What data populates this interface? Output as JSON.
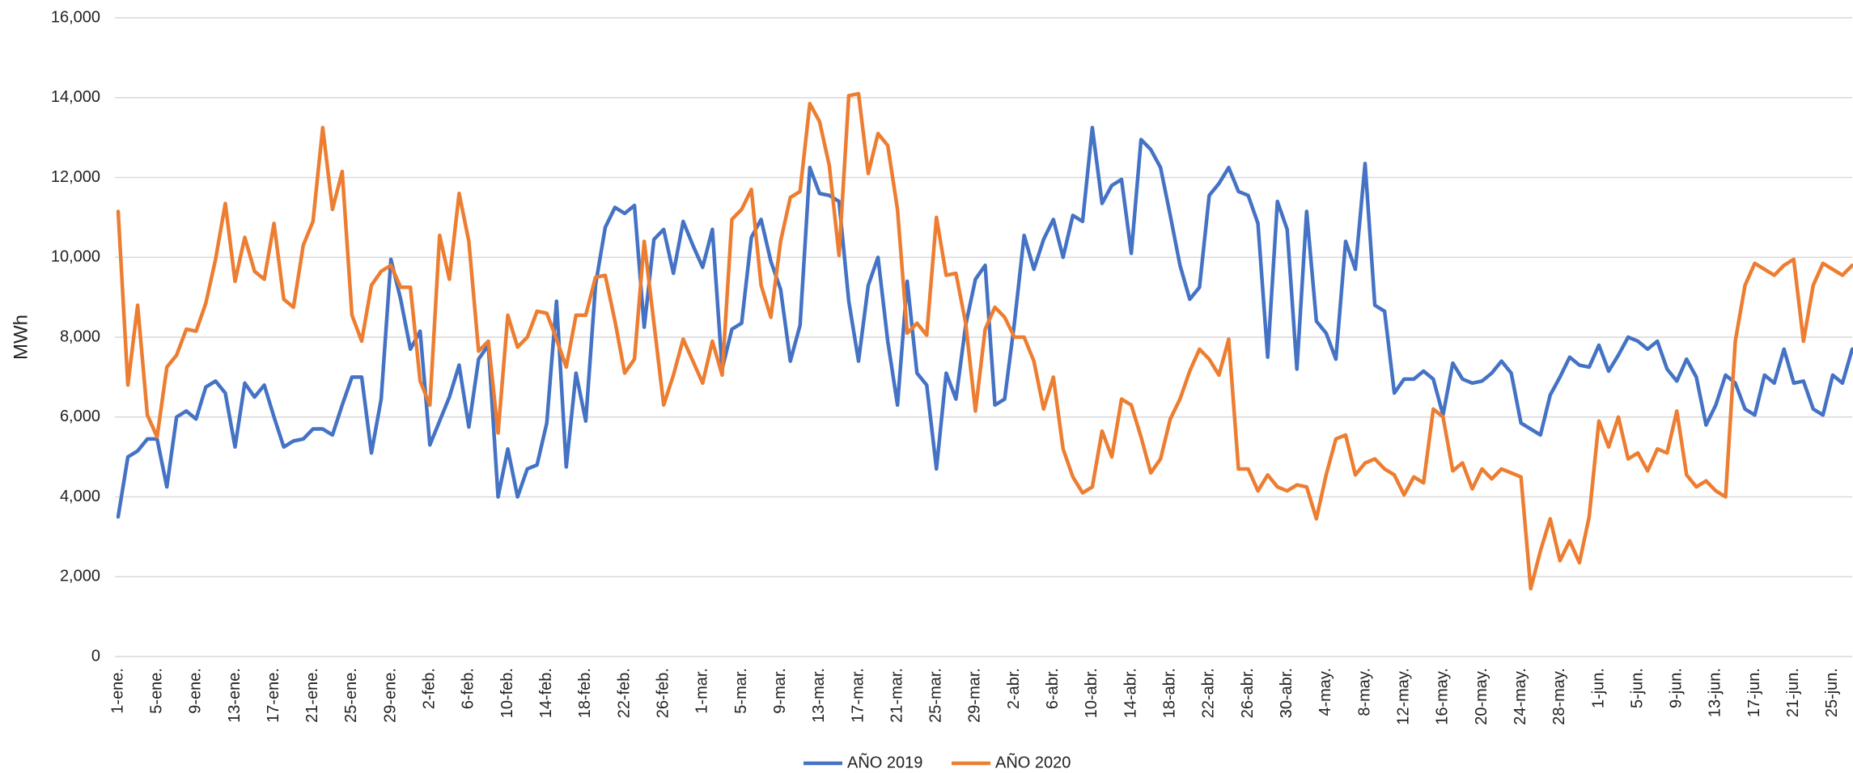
{
  "chart_data": {
    "type": "line",
    "y_label": "MWh",
    "categories": [
      "1-ene.",
      null,
      null,
      null,
      "5-ene.",
      null,
      null,
      null,
      "9-ene.",
      null,
      null,
      null,
      "13-ene.",
      null,
      null,
      null,
      "17-ene.",
      null,
      null,
      null,
      "21-ene.",
      null,
      null,
      null,
      "25-ene.",
      null,
      null,
      null,
      "29-ene.",
      null,
      null,
      null,
      "2-feb.",
      null,
      null,
      null,
      "6-feb.",
      null,
      null,
      null,
      "10-feb.",
      null,
      null,
      null,
      "14-feb.",
      null,
      null,
      null,
      "18-feb.",
      null,
      null,
      null,
      "22-feb.",
      null,
      null,
      null,
      "26-feb.",
      null,
      null,
      null,
      "1-mar.",
      null,
      null,
      null,
      "5-mar.",
      null,
      null,
      null,
      "9-mar.",
      null,
      null,
      null,
      "13-mar.",
      null,
      null,
      null,
      "17-mar.",
      null,
      null,
      null,
      "21-mar.",
      null,
      null,
      null,
      "25-mar.",
      null,
      null,
      null,
      "29-mar.",
      null,
      null,
      null,
      "2-abr.",
      null,
      null,
      null,
      "6-abr.",
      null,
      null,
      null,
      "10-abr.",
      null,
      null,
      null,
      "14-abr.",
      null,
      null,
      null,
      "18-abr.",
      null,
      null,
      null,
      "22-abr.",
      null,
      null,
      null,
      "26-abr.",
      null,
      null,
      null,
      "30-abr.",
      null,
      null,
      null,
      "4-may.",
      null,
      null,
      null,
      "8-may.",
      null,
      null,
      null,
      "12-may.",
      null,
      null,
      null,
      "16-may.",
      null,
      null,
      null,
      "20-may.",
      null,
      null,
      null,
      "24-may.",
      null,
      null,
      null,
      "28-may.",
      null,
      null,
      null,
      "1-jun.",
      null,
      null,
      null,
      "5-jun.",
      null,
      null,
      null,
      "9-jun.",
      null,
      null,
      null,
      "13-jun.",
      null,
      null,
      null,
      "17-jun.",
      null,
      null,
      null,
      "21-jun.",
      null,
      null,
      null,
      "25-jun.",
      null,
      null
    ],
    "series": [
      {
        "name": "AÑO 2019",
        "color": "#4472c4",
        "values": [
          3500,
          5000,
          5150,
          5450,
          5450,
          4250,
          6000,
          6150,
          5950,
          6750,
          6900,
          6600,
          5250,
          6850,
          6500,
          6800,
          6000,
          5250,
          5400,
          5450,
          5700,
          5700,
          5550,
          6300,
          7000,
          7000,
          5100,
          6450,
          9950,
          8950,
          7700,
          8150,
          5300,
          5900,
          6500,
          7300,
          5750,
          7450,
          7800,
          4000,
          5200,
          4000,
          4700,
          4800,
          5850,
          8900,
          4750,
          7100,
          5900,
          9300,
          10750,
          11250,
          11100,
          11300,
          8250,
          10450,
          10700,
          9600,
          10900,
          10300,
          9750,
          10700,
          7200,
          8200,
          8350,
          10500,
          10950,
          9900,
          9200,
          7400,
          8300,
          12250,
          11600,
          11550,
          11400,
          8900,
          7400,
          9300,
          10000,
          7900,
          6300,
          9400,
          7100,
          6800,
          4700,
          7100,
          6450,
          8300,
          9450,
          9800,
          6300,
          6450,
          8350,
          10550,
          9700,
          10450,
          10950,
          10000,
          11050,
          10900,
          13250,
          11350,
          11800,
          11950,
          10100,
          12950,
          12700,
          12250,
          11050,
          9800,
          8950,
          9250,
          11550,
          11850,
          12250,
          11650,
          11550,
          10850,
          7500,
          11400,
          10700,
          7200,
          11150,
          8400,
          8100,
          7450,
          10400,
          9700,
          12350,
          8800,
          8650,
          6600,
          6950,
          6950,
          7150,
          6950,
          6050,
          7350,
          6950,
          6850,
          6900,
          7100,
          7400,
          7100,
          5850,
          5700,
          5550,
          6550,
          7000,
          7500,
          7300,
          7250,
          7800,
          7150,
          7550,
          8000,
          7900,
          7700,
          7900,
          7200,
          6900,
          7450,
          7000,
          5800,
          6300,
          7050,
          6850,
          6200,
          6050,
          7050,
          6850,
          7700,
          6850,
          6900,
          6200,
          6050,
          7050,
          6850,
          7700
        ]
      },
      {
        "name": "AÑO 2020",
        "color": "#ed7d31",
        "values": [
          11150,
          6800,
          8800,
          6050,
          5500,
          7250,
          7550,
          8200,
          8150,
          8850,
          9950,
          11350,
          9400,
          10500,
          9650,
          9450,
          10850,
          8950,
          8750,
          10300,
          10900,
          13250,
          11200,
          12150,
          8550,
          7900,
          9300,
          9650,
          9800,
          9250,
          9250,
          6900,
          6300,
          10550,
          9450,
          11600,
          10400,
          7650,
          7900,
          5600,
          8550,
          7750,
          8000,
          8650,
          8600,
          7950,
          7250,
          8550,
          8550,
          9500,
          9550,
          8400,
          7100,
          7450,
          10400,
          8350,
          6300,
          7050,
          7950,
          7400,
          6850,
          7900,
          7050,
          10950,
          11200,
          11700,
          9300,
          8500,
          10400,
          11500,
          11650,
          13850,
          13400,
          12300,
          10050,
          14050,
          14100,
          12100,
          13100,
          12800,
          11200,
          8100,
          8350,
          8050,
          11000,
          9550,
          9600,
          8350,
          6150,
          8200,
          8750,
          8500,
          8000,
          8000,
          7400,
          6200,
          7000,
          5200,
          4500,
          4100,
          4250,
          5650,
          5000,
          6450,
          6300,
          5500,
          4600,
          4950,
          5950,
          6450,
          7150,
          7700,
          7450,
          7050,
          7950,
          4700,
          4700,
          4150,
          4550,
          4250,
          4150,
          4300,
          4250,
          3450,
          4550,
          5450,
          5550,
          4550,
          4850,
          4950,
          4700,
          4550,
          4050,
          4500,
          4350,
          6200,
          6000,
          4650,
          4850,
          4200,
          4700,
          4450,
          4700,
          4600,
          4500,
          1700,
          2650,
          3450,
          2400,
          2900,
          2350,
          3500,
          5900,
          5250,
          6000,
          4950,
          5100,
          4650,
          5200,
          5100,
          6150,
          4550,
          4250,
          4400,
          4150,
          4000,
          7900,
          9300,
          9850,
          9700,
          9550,
          9800,
          9950,
          7900,
          9300,
          9850,
          9700,
          9550,
          9800
        ]
      }
    ],
    "ylim": [
      0,
      16000
    ],
    "yticks": [
      0,
      {
        "value": 2000,
        "label": "2,000"
      },
      {
        "value": 4000,
        "label": "4,000"
      },
      {
        "value": 6000,
        "label": "6,000"
      },
      {
        "value": 8000,
        "label": "8,000"
      },
      {
        "value": 10000,
        "label": "10,000"
      },
      {
        "value": 12000,
        "label": "12,000"
      },
      {
        "value": 14000,
        "label": "14,000"
      },
      {
        "value": 16000,
        "label": "16,000"
      }
    ],
    "grid": true
  }
}
